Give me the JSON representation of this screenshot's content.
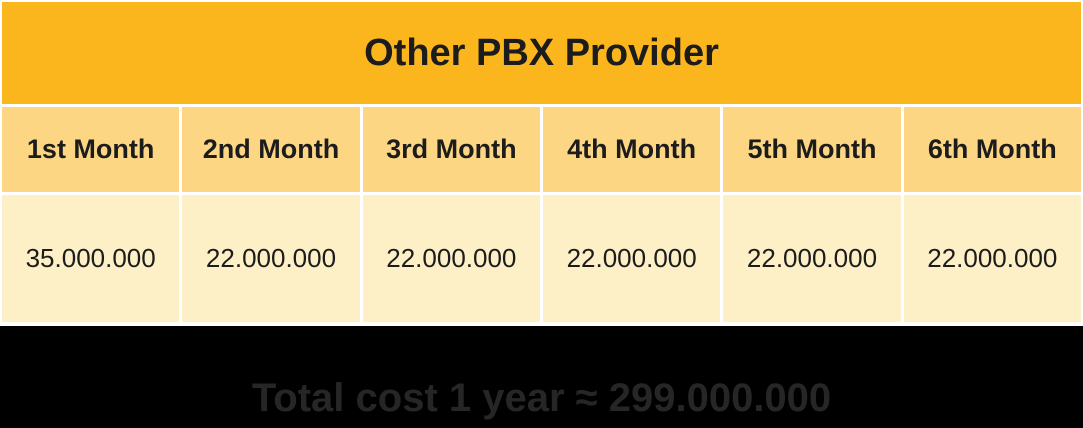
{
  "table": {
    "title": "Other PBX Provider",
    "headers": [
      "1st Month",
      "2nd Month",
      "3rd Month",
      "4th Month",
      "5th Month",
      "6th Month"
    ],
    "values": [
      "35.000.000",
      "22.000.000",
      "22.000.000",
      "22.000.000",
      "22.000.000",
      "22.000.000"
    ]
  },
  "footer": {
    "text": "Total cost 1 year ≈ 299.000.000"
  },
  "colors": {
    "title_bg": "#fbb61d",
    "header_bg": "#fcd683",
    "value_bg": "#fdefc6",
    "page_bg": "#000000"
  }
}
